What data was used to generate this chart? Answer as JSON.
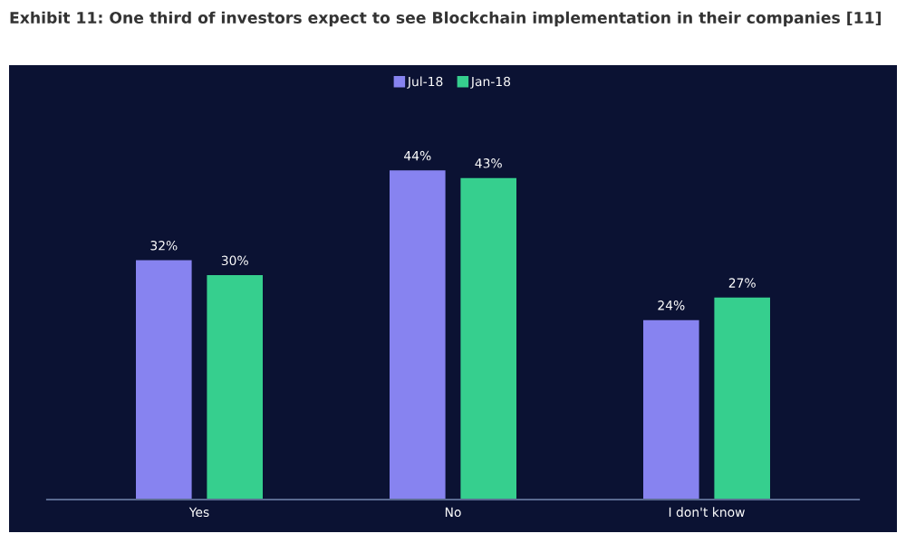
{
  "chart_data": {
    "type": "bar",
    "title": "Exhibit 11: One third of investors expect to see Blockchain implementation in their companies [11]",
    "categories": [
      "Yes",
      "No",
      "I don't know"
    ],
    "series": [
      {
        "name": "Jul-18",
        "color": "#8783f0",
        "values": [
          32,
          44,
          24
        ],
        "value_labels": [
          "32%",
          "44%",
          "24%"
        ]
      },
      {
        "name": "Jan-18",
        "color": "#36cf8e",
        "values": [
          30,
          43,
          27
        ],
        "value_labels": [
          "30%",
          "43%",
          "27%"
        ]
      }
    ],
    "legend": "top"
  }
}
